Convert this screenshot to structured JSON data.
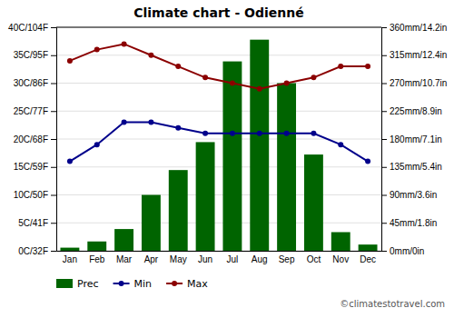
{
  "chart_data": {
    "type": "combo",
    "title": "Climate chart - Odienné",
    "categories": [
      "Jan",
      "Feb",
      "Mar",
      "Apr",
      "May",
      "Jun",
      "Jul",
      "Aug",
      "Sep",
      "Oct",
      "Nov",
      "Dec"
    ],
    "series": [
      {
        "name": "Prec",
        "type": "bar",
        "axis": "y2",
        "color": "#006400",
        "values": [
          5,
          15,
          35,
          90,
          130,
          175,
          305,
          340,
          270,
          155,
          30,
          10
        ]
      },
      {
        "name": "Min",
        "type": "line",
        "color": "#00008B",
        "marker": "circle",
        "values": [
          16,
          19,
          23,
          23,
          22,
          21,
          21,
          21,
          21,
          21,
          19,
          16
        ]
      },
      {
        "name": "Max",
        "type": "line",
        "color": "#8B0000",
        "marker": "circle",
        "values": [
          34,
          36,
          37,
          35,
          33,
          31,
          30,
          29,
          30,
          31,
          33,
          33
        ]
      }
    ],
    "ylim": [
      0,
      40
    ],
    "yticks": [
      {
        "value": 0,
        "label": "0C/32F"
      },
      {
        "value": 5,
        "label": "5C/41F"
      },
      {
        "value": 10,
        "label": "10C/50F"
      },
      {
        "value": 15,
        "label": "15C/59F"
      },
      {
        "value": 20,
        "label": "20C/68F"
      },
      {
        "value": 25,
        "label": "25C/77F"
      },
      {
        "value": 30,
        "label": "30C/86F"
      },
      {
        "value": 35,
        "label": "35C/95F"
      },
      {
        "value": 40,
        "label": "40C/104F"
      }
    ],
    "y2lim": [
      0,
      360
    ],
    "y2ticks": [
      {
        "value": 0,
        "label": "0mm/0in"
      },
      {
        "value": 45,
        "label": "45mm/1.8in"
      },
      {
        "value": 90,
        "label": "90mm/3.6in"
      },
      {
        "value": 135,
        "label": "135mm/5.4in"
      },
      {
        "value": 180,
        "label": "180mm/7.1in"
      },
      {
        "value": 225,
        "label": "225mm/8.9in"
      },
      {
        "value": 270,
        "label": "270mm/10.7in"
      },
      {
        "value": 315,
        "label": "315mm/12.4in"
      },
      {
        "value": 360,
        "label": "360mm/14.2in"
      }
    ],
    "grid": true,
    "legend": "bottom",
    "annotations": [
      "©climatestotravel.com"
    ]
  }
}
